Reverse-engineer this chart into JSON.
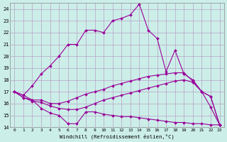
{
  "xlabel": "Windchill (Refroidissement éolien,°C)",
  "bg_color": "#cceee8",
  "grid_color": "#b8a0c8",
  "line_color": "#990099",
  "xlim": [
    -0.5,
    23.5
  ],
  "ylim": [
    14,
    24.5
  ],
  "yticks": [
    14,
    15,
    16,
    17,
    18,
    19,
    20,
    21,
    22,
    23,
    24
  ],
  "xticks": [
    0,
    1,
    2,
    3,
    4,
    5,
    6,
    7,
    8,
    9,
    10,
    11,
    12,
    13,
    14,
    15,
    16,
    17,
    18,
    19,
    20,
    21,
    22,
    23
  ],
  "line_top_x": [
    0,
    1,
    2,
    3,
    4,
    5,
    6,
    7,
    8,
    9,
    10,
    11,
    12,
    13,
    14,
    15,
    16,
    17,
    18,
    19,
    20,
    21,
    22,
    23
  ],
  "line_top_y": [
    17.0,
    16.7,
    17.5,
    18.5,
    19.2,
    20.0,
    21.0,
    21.0,
    22.2,
    22.2,
    22.0,
    23.0,
    23.2,
    23.5,
    24.4,
    22.2,
    21.5,
    18.7,
    20.5,
    18.5,
    18.0,
    17.0,
    15.7,
    14.2
  ],
  "line_mid_upper_x": [
    0,
    1,
    2,
    3,
    4,
    5,
    6,
    7,
    8,
    9,
    10,
    11,
    12,
    13,
    14,
    15,
    16,
    17,
    18,
    19,
    20,
    21,
    22,
    23
  ],
  "line_mid_upper_y": [
    17.0,
    16.7,
    16.3,
    16.3,
    16.0,
    16.0,
    16.2,
    16.5,
    16.8,
    17.0,
    17.2,
    17.5,
    17.7,
    17.9,
    18.1,
    18.3,
    18.4,
    18.5,
    18.6,
    18.6,
    17.9,
    17.0,
    16.6,
    14.2
  ],
  "line_mid_lower_x": [
    0,
    1,
    2,
    3,
    4,
    5,
    6,
    7,
    8,
    9,
    10,
    11,
    12,
    13,
    14,
    15,
    16,
    17,
    18,
    19,
    20,
    21,
    22,
    23
  ],
  "line_mid_lower_y": [
    17.0,
    16.5,
    16.2,
    16.1,
    15.8,
    15.6,
    15.5,
    15.5,
    15.7,
    16.0,
    16.3,
    16.5,
    16.7,
    16.9,
    17.1,
    17.3,
    17.5,
    17.7,
    17.9,
    18.0,
    17.8,
    17.0,
    16.6,
    14.2
  ],
  "line_bot_x": [
    0,
    1,
    2,
    3,
    4,
    5,
    6,
    7,
    8,
    9,
    10,
    11,
    12,
    13,
    14,
    15,
    16,
    17,
    18,
    19,
    20,
    21,
    22,
    23
  ],
  "line_bot_y": [
    17.0,
    16.5,
    16.3,
    15.6,
    15.2,
    15.0,
    14.3,
    14.3,
    15.3,
    15.3,
    15.1,
    15.0,
    14.9,
    14.9,
    14.8,
    14.7,
    14.6,
    14.5,
    14.4,
    14.4,
    14.3,
    14.3,
    14.2,
    14.2
  ]
}
